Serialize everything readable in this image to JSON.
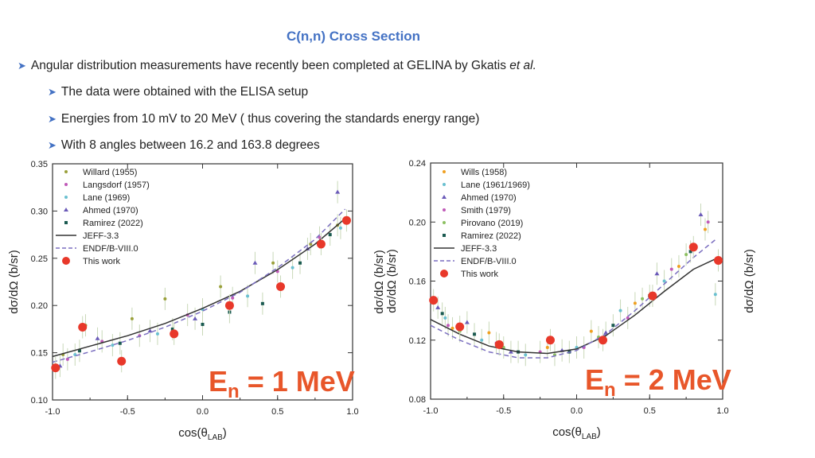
{
  "slide": {
    "title": "C(n,n) Cross Section",
    "bullets": [
      {
        "text": "Angular distribution measurements have recently been completed at GELINA by Gkatis ",
        "italic": "et al."
      },
      {
        "text": "The data were obtained with the ELISA setup"
      },
      {
        "text": "Energies from 10 mV to 20 MeV ( thus covering the standards energy range)"
      },
      {
        "text": "With 8 angles between 16.2 and 163.8 degrees"
      }
    ]
  },
  "chart_data": [
    {
      "type": "scatter",
      "ylabel": "dσ/dΩ (b/sr)",
      "xlabel": "cos(θ",
      "xlabel_sub": "LAB",
      "xlabel_close": ")",
      "xlim": [
        -1.0,
        1.0
      ],
      "ylim": [
        0.1,
        0.35
      ],
      "xticks": [
        "-1.0",
        "-0.5",
        "0.0",
        "0.5",
        "1.0"
      ],
      "xtick_values": [
        -1.0,
        -0.5,
        0.0,
        0.5,
        1.0
      ],
      "yticks": [
        "0.10",
        "0.15",
        "0.20",
        "0.25",
        "0.30",
        "0.35"
      ],
      "ytick_values": [
        0.1,
        0.15,
        0.2,
        0.25,
        0.3,
        0.35
      ],
      "energy_main": "E",
      "energy_sub": "n",
      "energy_value": " = 1 MeV",
      "legend_position": "top-left",
      "colors": {
        "experiment": "#7ca8c8",
        "jeff": "#333333",
        "endf": "#7b6fc0",
        "this_work": "#e8382a"
      },
      "series": [
        {
          "name": "Willard (1955)",
          "marker": "dot",
          "color": "#9aa03a",
          "x": [
            -0.93,
            -0.78,
            -0.47,
            -0.25,
            0.12,
            0.47,
            0.72,
            0.9
          ],
          "y": [
            0.148,
            0.179,
            0.186,
            0.207,
            0.22,
            0.245,
            0.265,
            0.285
          ]
        },
        {
          "name": "Langsdorf (1957)",
          "marker": "dot",
          "color": "#c05ab8",
          "x": [
            -0.9,
            -0.67,
            -0.42,
            -0.1,
            0.2,
            0.5,
            0.78
          ],
          "y": [
            0.143,
            0.162,
            0.168,
            0.19,
            0.208,
            0.236,
            0.272
          ]
        },
        {
          "name": "Lane (1969)",
          "marker": "dot",
          "color": "#6ac0d0",
          "x": [
            -0.85,
            -0.6,
            -0.3,
            0.0,
            0.3,
            0.6,
            0.92
          ],
          "y": [
            0.148,
            0.158,
            0.17,
            0.196,
            0.21,
            0.24,
            0.282
          ]
        },
        {
          "name": "Ahmed (1970)",
          "marker": "triangle",
          "color": "#6a5ab8",
          "x": [
            -0.95,
            -0.7,
            -0.35,
            -0.05,
            0.35,
            0.7,
            0.9
          ],
          "y": [
            0.136,
            0.165,
            0.173,
            0.186,
            0.245,
            0.26,
            0.32
          ]
        },
        {
          "name": "Ramirez (2022)",
          "marker": "square",
          "color": "#1a5a50",
          "x": [
            -0.82,
            -0.55,
            -0.2,
            0.0,
            0.18,
            0.4,
            0.65,
            0.85
          ],
          "y": [
            0.152,
            0.16,
            0.175,
            0.18,
            0.193,
            0.202,
            0.245,
            0.275
          ]
        },
        {
          "name": "JEFF-3.3",
          "marker": "line",
          "color": "#333333",
          "x": [
            -1.0,
            -0.75,
            -0.5,
            -0.25,
            0.0,
            0.25,
            0.5,
            0.75,
            0.95
          ],
          "y": [
            0.146,
            0.157,
            0.168,
            0.181,
            0.197,
            0.215,
            0.238,
            0.265,
            0.292
          ]
        },
        {
          "name": "ENDF/B-VIII.0",
          "marker": "dashed",
          "color": "#7b6fc0",
          "x": [
            -1.0,
            -0.75,
            -0.5,
            -0.25,
            0.0,
            0.25,
            0.5,
            0.75,
            0.95
          ],
          "y": [
            0.14,
            0.151,
            0.163,
            0.177,
            0.194,
            0.214,
            0.24,
            0.27,
            0.302
          ]
        },
        {
          "name": "This work",
          "marker": "big-dot",
          "color": "#e8382a",
          "x": [
            -0.98,
            -0.8,
            -0.54,
            -0.19,
            0.18,
            0.52,
            0.79,
            0.96
          ],
          "y": [
            0.134,
            0.177,
            0.141,
            0.17,
            0.2,
            0.22,
            0.265,
            0.29
          ]
        }
      ]
    },
    {
      "type": "scatter",
      "ylabel": "dσ/dΩ (b/sr)",
      "xlabel": "cos(θ",
      "xlabel_sub": "LAB",
      "xlabel_close": ")",
      "xlim": [
        -1.0,
        1.0
      ],
      "ylim": [
        0.08,
        0.24
      ],
      "xticks": [
        "-1.0",
        "-0.5",
        "0.0",
        "0.5",
        "1.0"
      ],
      "xtick_values": [
        -1.0,
        -0.5,
        0.0,
        0.5,
        1.0
      ],
      "yticks": [
        "0.08",
        "0.12",
        "0.16",
        "0.20",
        "0.24"
      ],
      "ytick_values": [
        0.08,
        0.12,
        0.16,
        0.2,
        0.24
      ],
      "energy_main": "E",
      "energy_sub": "n",
      "energy_value": " = 2 MeV",
      "legend_position": "top-left",
      "series": [
        {
          "name": "Wills (1958)",
          "marker": "dot",
          "color": "#f0a020",
          "x": [
            -0.85,
            -0.6,
            -0.2,
            0.1,
            0.4,
            0.7,
            0.88
          ],
          "y": [
            0.128,
            0.125,
            0.115,
            0.126,
            0.145,
            0.17,
            0.195
          ]
        },
        {
          "name": "Lane (1961/1969)",
          "marker": "dot",
          "color": "#6ac0d0",
          "x": [
            -0.9,
            -0.65,
            -0.35,
            0.0,
            0.3,
            0.6,
            0.95
          ],
          "y": [
            0.135,
            0.12,
            0.11,
            0.115,
            0.14,
            0.16,
            0.151
          ]
        },
        {
          "name": "Ahmed (1970)",
          "marker": "triangle",
          "color": "#6a5ab8",
          "x": [
            -0.95,
            -0.75,
            -0.45,
            -0.1,
            0.2,
            0.55,
            0.85
          ],
          "y": [
            0.142,
            0.132,
            0.112,
            0.113,
            0.125,
            0.165,
            0.205
          ]
        },
        {
          "name": "Smith (1979)",
          "marker": "dot",
          "color": "#c05ab8",
          "x": [
            -0.88,
            -0.55,
            -0.25,
            0.05,
            0.35,
            0.65,
            0.9
          ],
          "y": [
            0.13,
            0.118,
            0.112,
            0.115,
            0.135,
            0.168,
            0.2
          ]
        },
        {
          "name": "Pirovano (2019)",
          "marker": "dot",
          "color": "#8cc060",
          "x": [
            -0.8,
            -0.5,
            -0.15,
            0.15,
            0.45,
            0.75
          ],
          "y": [
            0.126,
            0.115,
            0.11,
            0.122,
            0.148,
            0.178
          ]
        },
        {
          "name": "Ramirez (2022)",
          "marker": "square",
          "color": "#1a5a50",
          "x": [
            -0.92,
            -0.7,
            -0.4,
            -0.05,
            0.25,
            0.5,
            0.78
          ],
          "y": [
            0.138,
            0.124,
            0.112,
            0.112,
            0.13,
            0.15,
            0.18
          ]
        },
        {
          "name": "JEFF-3.3",
          "marker": "line",
          "color": "#333333",
          "x": [
            -1.0,
            -0.8,
            -0.6,
            -0.4,
            -0.2,
            0.0,
            0.2,
            0.4,
            0.6,
            0.8,
            0.95
          ],
          "y": [
            0.134,
            0.124,
            0.116,
            0.112,
            0.111,
            0.114,
            0.123,
            0.137,
            0.153,
            0.168,
            0.175
          ]
        },
        {
          "name": "ENDF/B-VIII.0",
          "marker": "dashed",
          "color": "#7b6fc0",
          "x": [
            -1.0,
            -0.8,
            -0.6,
            -0.4,
            -0.2,
            0.0,
            0.2,
            0.4,
            0.6,
            0.8,
            0.95
          ],
          "y": [
            0.13,
            0.12,
            0.112,
            0.108,
            0.108,
            0.113,
            0.124,
            0.14,
            0.158,
            0.176,
            0.188
          ]
        },
        {
          "name": "This work",
          "marker": "big-dot",
          "color": "#e8382a",
          "x": [
            -0.98,
            -0.8,
            -0.53,
            -0.18,
            0.18,
            0.52,
            0.8,
            0.97
          ],
          "y": [
            0.147,
            0.129,
            0.117,
            0.12,
            0.12,
            0.15,
            0.183,
            0.174
          ]
        }
      ]
    }
  ]
}
